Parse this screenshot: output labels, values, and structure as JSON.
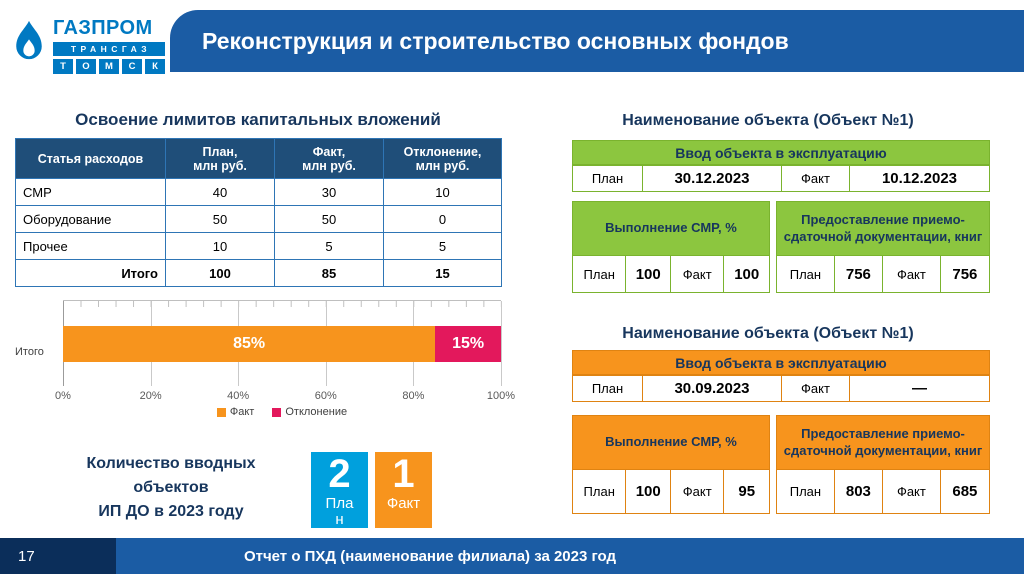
{
  "theme": {
    "header_blue": "#1b5ca4",
    "navy": "#17365d",
    "table_header_bg": "#1f4e79",
    "table_border": "#2e75b5",
    "green": "#8cc63f",
    "orange": "#f7941d",
    "crimson": "#e3185c",
    "cyan_blue": "#00a0dd",
    "logo_blue": "#0079c2",
    "footer_navy": "#0b2e5a"
  },
  "logo": {
    "brand": "ГАЗПРОМ",
    "sub": "ТРАНСГАЗ",
    "city": [
      "Т",
      "О",
      "М",
      "С",
      "К"
    ]
  },
  "header": {
    "title": "Реконструкция и строительство основных фондов"
  },
  "left": {
    "section_title": "Освоение лимитов капитальных вложений",
    "table": {
      "headers": [
        "Статья расходов",
        "План,\nмлн руб.",
        "Факт,\nмлн руб.",
        "Отклонение,\nмлн руб."
      ],
      "rows": [
        [
          "СМР",
          "40",
          "30",
          "10"
        ],
        [
          "Оборудование",
          "50",
          "50",
          "0"
        ],
        [
          "Прочее",
          "10",
          "5",
          "5"
        ]
      ],
      "total_label": "Итого",
      "total": [
        "100",
        "85",
        "15"
      ]
    },
    "counter": {
      "label": "Количество вводных\nобъектов\nИП ДО в 2023 году",
      "plan_value": "2",
      "plan_label": "План",
      "fact_value": "1",
      "fact_label": "Факт"
    }
  },
  "chart_data": {
    "type": "bar",
    "orientation": "horizontal",
    "stacked": true,
    "categories": [
      "Итого"
    ],
    "series": [
      {
        "name": "Факт",
        "values": [
          85
        ],
        "color": "#f7941d"
      },
      {
        "name": "Отклонение",
        "values": [
          15
        ],
        "color": "#e3185c"
      }
    ],
    "data_labels": [
      "85%",
      "15%"
    ],
    "x_ticks": [
      "0%",
      "20%",
      "40%",
      "60%",
      "80%",
      "100%"
    ],
    "xlim": [
      0,
      100
    ],
    "gridlines": true,
    "legend_position": "bottom"
  },
  "right": {
    "objects": [
      {
        "title": "Наименование объекта (Объект №1)",
        "accent": "green",
        "commissioning": {
          "header": "Ввод объекта в эксплуатацию",
          "plan_label": "План",
          "plan_value": "30.12.2023",
          "fact_label": "Факт",
          "fact_value": "10.12.2023"
        },
        "smr": {
          "header": "Выполнение СМР, %",
          "plan_label": "План",
          "plan_value": "100",
          "fact_label": "Факт",
          "fact_value": "100"
        },
        "docs": {
          "header": "Предоставление приемо-сдаточной документации, книг",
          "plan_label": "План",
          "plan_value": "756",
          "fact_label": "Факт",
          "fact_value": "756"
        }
      },
      {
        "title": "Наименование объекта (Объект №1)",
        "accent": "orange",
        "commissioning": {
          "header": "Ввод объекта в эксплуатацию",
          "plan_label": "План",
          "plan_value": "30.09.2023",
          "fact_label": "Факт",
          "fact_value": "—"
        },
        "smr": {
          "header": "Выполнение СМР, %",
          "plan_label": "План",
          "plan_value": "100",
          "fact_label": "Факт",
          "fact_value": "95"
        },
        "docs": {
          "header": "Предоставление приемо-сдаточной документации, книг",
          "plan_label": "План",
          "plan_value": "803",
          "fact_label": "Факт",
          "fact_value": "685"
        }
      }
    ]
  },
  "footer": {
    "page": "17",
    "text": "Отчет о ПХД (наименование филиала) за 2023 год"
  }
}
